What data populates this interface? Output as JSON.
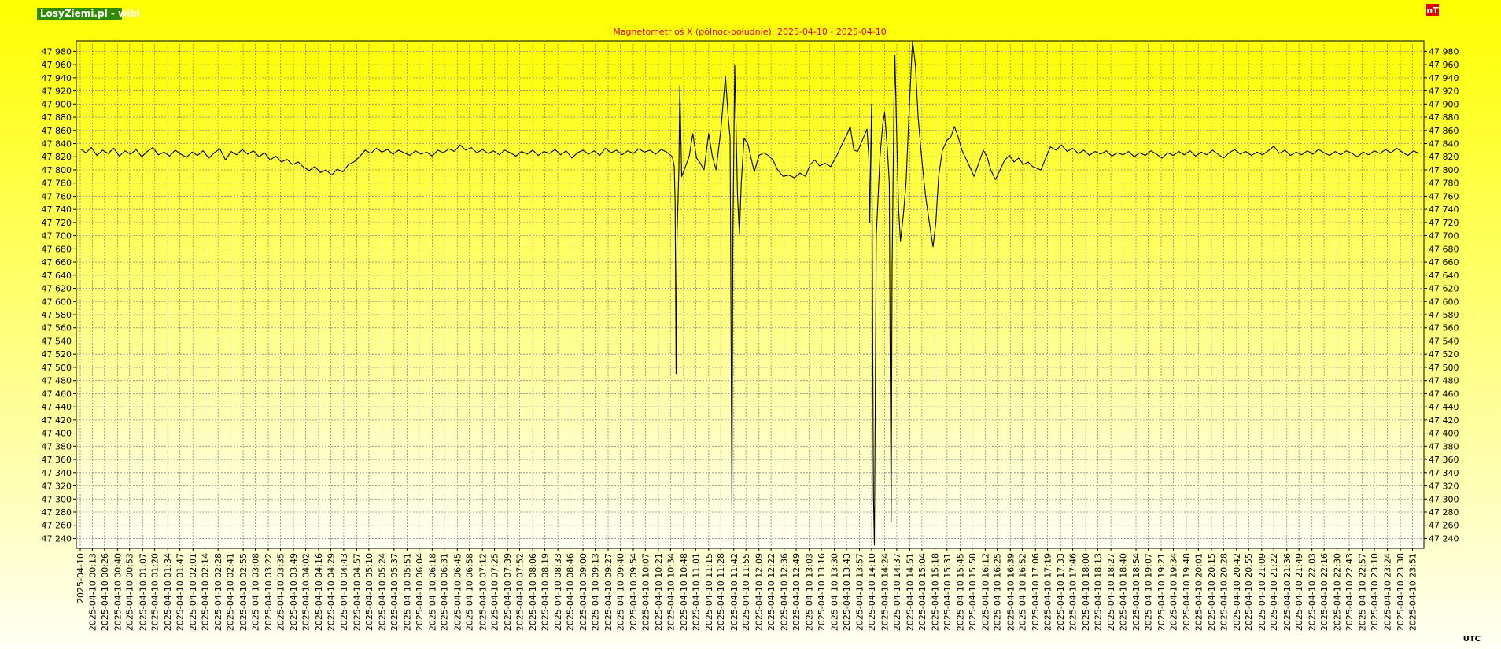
{
  "logo": "LosyZiemi.pl - wibi",
  "unit": "nT",
  "time_zone": "UTC",
  "chart_data": {
    "type": "line",
    "title": "Magnetometr oś X (północ-południe): 2025-04-10 - 2025-04-10",
    "color": "#000000",
    "grid": true,
    "xlim": [
      "2025-04-10 00:00",
      "2025-04-10 23:59"
    ],
    "ylim": [
      47225,
      47996
    ],
    "yticks": [
      {
        "value": 47240,
        "label": "47 240"
      },
      {
        "value": 47260,
        "label": "47 260"
      },
      {
        "value": 47280,
        "label": "47 280"
      },
      {
        "value": 47300,
        "label": "47 300"
      },
      {
        "value": 47320,
        "label": "47 320"
      },
      {
        "value": 47340,
        "label": "47 340"
      },
      {
        "value": 47360,
        "label": "47 360"
      },
      {
        "value": 47380,
        "label": "47 380"
      },
      {
        "value": 47400,
        "label": "47 400"
      },
      {
        "value": 47420,
        "label": "47 420"
      },
      {
        "value": 47440,
        "label": "47 440"
      },
      {
        "value": 47460,
        "label": "47 460"
      },
      {
        "value": 47480,
        "label": "47 480"
      },
      {
        "value": 47500,
        "label": "47 500"
      },
      {
        "value": 47520,
        "label": "47 520"
      },
      {
        "value": 47540,
        "label": "47 540"
      },
      {
        "value": 47560,
        "label": "47 560"
      },
      {
        "value": 47580,
        "label": "47 580"
      },
      {
        "value": 47600,
        "label": "47 600"
      },
      {
        "value": 47620,
        "label": "47 620"
      },
      {
        "value": 47640,
        "label": "47 640"
      },
      {
        "value": 47660,
        "label": "47 660"
      },
      {
        "value": 47680,
        "label": "47 680"
      },
      {
        "value": 47700,
        "label": "47 700"
      },
      {
        "value": 47720,
        "label": "47 720"
      },
      {
        "value": 47740,
        "label": "47 740"
      },
      {
        "value": 47760,
        "label": "47 760"
      },
      {
        "value": 47780,
        "label": "47 780"
      },
      {
        "value": 47800,
        "label": "47 800"
      },
      {
        "value": 47820,
        "label": "47 820"
      },
      {
        "value": 47840,
        "label": "47 840"
      },
      {
        "value": 47860,
        "label": "47 860"
      },
      {
        "value": 47880,
        "label": "47 880"
      },
      {
        "value": 47900,
        "label": "47 900"
      },
      {
        "value": 47920,
        "label": "47 920"
      },
      {
        "value": 47940,
        "label": "47 940"
      },
      {
        "value": 47960,
        "label": "47 960"
      },
      {
        "value": 47980,
        "label": "47 980"
      }
    ],
    "xticks": [
      "2025-04-10",
      "2025-04-10 00:13",
      "2025-04-10 00:26",
      "2025-04-10 00:40",
      "2025-04-10 00:53",
      "2025-04-10 01:07",
      "2025-04-10 01:20",
      "2025-04-10 01:34",
      "2025-04-10 01:47",
      "2025-04-10 02:01",
      "2025-04-10 02:14",
      "2025-04-10 02:28",
      "2025-04-10 02:41",
      "2025-04-10 02:55",
      "2025-04-10 03:08",
      "2025-04-10 03:22",
      "2025-04-10 03:35",
      "2025-04-10 03:49",
      "2025-04-10 04:02",
      "2025-04-10 04:16",
      "2025-04-10 04:29",
      "2025-04-10 04:43",
      "2025-04-10 04:57",
      "2025-04-10 05:10",
      "2025-04-10 05:24",
      "2025-04-10 05:37",
      "2025-04-10 05:51",
      "2025-04-10 06:04",
      "2025-04-10 06:18",
      "2025-04-10 06:31",
      "2025-04-10 06:45",
      "2025-04-10 06:58",
      "2025-04-10 07:12",
      "2025-04-10 07:25",
      "2025-04-10 07:39",
      "2025-04-10 07:52",
      "2025-04-10 08:06",
      "2025-04-10 08:19",
      "2025-04-10 08:33",
      "2025-04-10 08:46",
      "2025-04-10 09:00",
      "2025-04-10 09:13",
      "2025-04-10 09:27",
      "2025-04-10 09:40",
      "2025-04-10 09:54",
      "2025-04-10 10:07",
      "2025-04-10 10:21",
      "2025-04-10 10:34",
      "2025-04-10 10:48",
      "2025-04-10 11:01",
      "2025-04-10 11:15",
      "2025-04-10 11:28",
      "2025-04-10 11:42",
      "2025-04-10 11:55",
      "2025-04-10 12:09",
      "2025-04-10 12:22",
      "2025-04-10 12:36",
      "2025-04-10 12:49",
      "2025-04-10 13:03",
      "2025-04-10 13:16",
      "2025-04-10 13:30",
      "2025-04-10 13:43",
      "2025-04-10 13:57",
      "2025-04-10 14:10",
      "2025-04-10 14:24",
      "2025-04-10 14:37",
      "2025-04-10 14:51",
      "2025-04-10 15:04",
      "2025-04-10 15:18",
      "2025-04-10 15:31",
      "2025-04-10 15:45",
      "2025-04-10 15:58",
      "2025-04-10 16:12",
      "2025-04-10 16:25",
      "2025-04-10 16:39",
      "2025-04-10 16:52",
      "2025-04-10 17:06",
      "2025-04-10 17:19",
      "2025-04-10 17:33",
      "2025-04-10 17:46",
      "2025-04-10 18:00",
      "2025-04-10 18:13",
      "2025-04-10 18:27",
      "2025-04-10 18:40",
      "2025-04-10 18:54",
      "2025-04-10 19:07",
      "2025-04-10 19:21",
      "2025-04-10 19:34",
      "2025-04-10 19:48",
      "2025-04-10 20:01",
      "2025-04-10 20:15",
      "2025-04-10 20:28",
      "2025-04-10 20:42",
      "2025-04-10 20:55",
      "2025-04-10 21:09",
      "2025-04-10 21:22",
      "2025-04-10 21:36",
      "2025-04-10 21:49",
      "2025-04-10 22:03",
      "2025-04-10 22:16",
      "2025-04-10 22:30",
      "2025-04-10 22:43",
      "2025-04-10 22:57",
      "2025-04-10 23:10",
      "2025-04-10 23:24",
      "2025-04-10 23:38",
      "2025-04-10 23:51"
    ],
    "x": [
      "2025-04-10 00:00",
      "2025-04-10 00:06",
      "2025-04-10 00:12",
      "2025-04-10 00:18",
      "2025-04-10 00:24",
      "2025-04-10 00:30",
      "2025-04-10 00:36",
      "2025-04-10 00:42",
      "2025-04-10 00:48",
      "2025-04-10 00:54",
      "2025-04-10 01:00",
      "2025-04-10 01:06",
      "2025-04-10 01:12",
      "2025-04-10 01:18",
      "2025-04-10 01:24",
      "2025-04-10 01:30",
      "2025-04-10 01:36",
      "2025-04-10 01:42",
      "2025-04-10 01:48",
      "2025-04-10 01:54",
      "2025-04-10 02:00",
      "2025-04-10 02:06",
      "2025-04-10 02:12",
      "2025-04-10 02:18",
      "2025-04-10 02:24",
      "2025-04-10 02:30",
      "2025-04-10 02:36",
      "2025-04-10 02:42",
      "2025-04-10 02:48",
      "2025-04-10 02:54",
      "2025-04-10 03:00",
      "2025-04-10 03:06",
      "2025-04-10 03:12",
      "2025-04-10 03:18",
      "2025-04-10 03:24",
      "2025-04-10 03:30",
      "2025-04-10 03:36",
      "2025-04-10 03:42",
      "2025-04-10 03:48",
      "2025-04-10 03:54",
      "2025-04-10 04:00",
      "2025-04-10 04:06",
      "2025-04-10 04:12",
      "2025-04-10 04:18",
      "2025-04-10 04:24",
      "2025-04-10 04:30",
      "2025-04-10 04:36",
      "2025-04-10 04:42",
      "2025-04-10 04:48",
      "2025-04-10 04:54",
      "2025-04-10 05:00",
      "2025-04-10 05:06",
      "2025-04-10 05:12",
      "2025-04-10 05:18",
      "2025-04-10 05:24",
      "2025-04-10 05:30",
      "2025-04-10 05:36",
      "2025-04-10 05:42",
      "2025-04-10 05:48",
      "2025-04-10 05:54",
      "2025-04-10 06:00",
      "2025-04-10 06:06",
      "2025-04-10 06:12",
      "2025-04-10 06:18",
      "2025-04-10 06:24",
      "2025-04-10 06:30",
      "2025-04-10 06:36",
      "2025-04-10 06:42",
      "2025-04-10 06:48",
      "2025-04-10 06:54",
      "2025-04-10 07:00",
      "2025-04-10 07:06",
      "2025-04-10 07:12",
      "2025-04-10 07:18",
      "2025-04-10 07:24",
      "2025-04-10 07:30",
      "2025-04-10 07:36",
      "2025-04-10 07:42",
      "2025-04-10 07:48",
      "2025-04-10 07:54",
      "2025-04-10 08:00",
      "2025-04-10 08:06",
      "2025-04-10 08:12",
      "2025-04-10 08:18",
      "2025-04-10 08:24",
      "2025-04-10 08:30",
      "2025-04-10 08:36",
      "2025-04-10 08:42",
      "2025-04-10 08:48",
      "2025-04-10 08:54",
      "2025-04-10 09:00",
      "2025-04-10 09:06",
      "2025-04-10 09:12",
      "2025-04-10 09:18",
      "2025-04-10 09:24",
      "2025-04-10 09:30",
      "2025-04-10 09:36",
      "2025-04-10 09:42",
      "2025-04-10 09:48",
      "2025-04-10 09:54",
      "2025-04-10 10:00",
      "2025-04-10 10:06",
      "2025-04-10 10:12",
      "2025-04-10 10:18",
      "2025-04-10 10:24",
      "2025-04-10 10:30",
      "2025-04-10 10:36",
      "2025-04-10 10:38",
      "2025-04-10 10:39",
      "2025-04-10 10:40",
      "2025-04-10 10:41",
      "2025-04-10 10:43",
      "2025-04-10 10:44",
      "2025-04-10 10:46",
      "2025-04-10 10:50",
      "2025-04-10 10:54",
      "2025-04-10 10:58",
      "2025-04-10 11:02",
      "2025-04-10 11:06",
      "2025-04-10 11:10",
      "2025-04-10 11:15",
      "2025-04-10 11:19",
      "2025-04-10 11:23",
      "2025-04-10 11:28",
      "2025-04-10 11:33",
      "2025-04-10 11:36",
      "2025-04-10 11:38",
      "2025-04-10 11:40",
      "2025-04-10 11:41",
      "2025-04-10 11:43",
      "2025-04-10 11:46",
      "2025-04-10 11:48",
      "2025-04-10 11:50",
      "2025-04-10 11:53",
      "2025-04-10 11:57",
      "2025-04-10 12:01",
      "2025-04-10 12:04",
      "2025-04-10 12:09",
      "2025-04-10 12:14",
      "2025-04-10 12:19",
      "2025-04-10 12:24",
      "2025-04-10 12:29",
      "2025-04-10 12:35",
      "2025-04-10 12:41",
      "2025-04-10 12:47",
      "2025-04-10 12:53",
      "2025-04-10 12:59",
      "2025-04-10 13:04",
      "2025-04-10 13:09",
      "2025-04-10 13:14",
      "2025-04-10 13:20",
      "2025-04-10 13:26",
      "2025-04-10 13:32",
      "2025-04-10 13:38",
      "2025-04-10 13:44",
      "2025-04-10 13:47",
      "2025-04-10 13:51",
      "2025-04-10 13:55",
      "2025-04-10 14:00",
      "2025-04-10 14:05",
      "2025-04-10 14:07",
      "2025-04-10 14:08",
      "2025-04-10 14:09",
      "2025-04-10 14:10",
      "2025-04-10 14:12",
      "2025-04-10 14:13",
      "2025-04-10 14:15",
      "2025-04-10 14:19",
      "2025-04-10 14:22",
      "2025-04-10 14:24",
      "2025-04-10 14:27",
      "2025-04-10 14:29",
      "2025-04-10 14:30",
      "2025-04-10 14:31",
      "2025-04-10 14:32",
      "2025-04-10 14:34",
      "2025-04-10 14:35",
      "2025-04-10 14:37",
      "2025-04-10 14:39",
      "2025-04-10 14:41",
      "2025-04-10 14:44",
      "2025-04-10 14:47",
      "2025-04-10 14:50",
      "2025-04-10 14:53",
      "2025-04-10 14:54",
      "2025-04-10 14:57",
      "2025-04-10 15:00",
      "2025-04-10 15:03",
      "2025-04-10 15:05",
      "2025-04-10 15:08",
      "2025-04-10 15:12",
      "2025-04-10 15:16",
      "2025-04-10 15:19",
      "2025-04-10 15:22",
      "2025-04-10 15:26",
      "2025-04-10 15:31",
      "2025-04-10 15:35",
      "2025-04-10 15:39",
      "2025-04-10 15:43",
      "2025-04-10 15:47",
      "2025-04-10 15:52",
      "2025-04-10 15:57",
      "2025-04-10 16:00",
      "2025-04-10 16:05",
      "2025-04-10 16:10",
      "2025-04-10 16:14",
      "2025-04-10 16:18",
      "2025-04-10 16:23",
      "2025-04-10 16:28",
      "2025-04-10 16:33",
      "2025-04-10 16:38",
      "2025-04-10 16:43",
      "2025-04-10 16:48",
      "2025-04-10 16:53",
      "2025-04-10 16:58",
      "2025-04-10 17:03",
      "2025-04-10 17:08",
      "2025-04-10 17:12",
      "2025-04-10 17:17",
      "2025-04-10 17:22",
      "2025-04-10 17:28",
      "2025-04-10 17:34",
      "2025-04-10 17:40",
      "2025-04-10 17:46",
      "2025-04-10 17:52",
      "2025-04-10 17:58",
      "2025-04-10 18:04",
      "2025-04-10 18:10",
      "2025-04-10 18:16",
      "2025-04-10 18:22",
      "2025-04-10 18:28",
      "2025-04-10 18:34",
      "2025-04-10 18:40",
      "2025-04-10 18:46",
      "2025-04-10 18:52",
      "2025-04-10 18:58",
      "2025-04-10 19:04",
      "2025-04-10 19:10",
      "2025-04-10 19:16",
      "2025-04-10 19:22",
      "2025-04-10 19:28",
      "2025-04-10 19:34",
      "2025-04-10 19:40",
      "2025-04-10 19:46",
      "2025-04-10 19:52",
      "2025-04-10 19:58",
      "2025-04-10 20:04",
      "2025-04-10 20:10",
      "2025-04-10 20:16",
      "2025-04-10 20:22",
      "2025-04-10 20:28",
      "2025-04-10 20:34",
      "2025-04-10 20:40",
      "2025-04-10 20:46",
      "2025-04-10 20:52",
      "2025-04-10 20:58",
      "2025-04-10 21:04",
      "2025-04-10 21:10",
      "2025-04-10 21:16",
      "2025-04-10 21:22",
      "2025-04-10 21:28",
      "2025-04-10 21:34",
      "2025-04-10 21:40",
      "2025-04-10 21:46",
      "2025-04-10 21:52",
      "2025-04-10 21:58",
      "2025-04-10 22:04",
      "2025-04-10 22:10",
      "2025-04-10 22:16",
      "2025-04-10 22:22",
      "2025-04-10 22:28",
      "2025-04-10 22:34",
      "2025-04-10 22:40",
      "2025-04-10 22:46",
      "2025-04-10 22:52",
      "2025-04-10 22:58",
      "2025-04-10 23:04",
      "2025-04-10 23:10",
      "2025-04-10 23:16",
      "2025-04-10 23:22",
      "2025-04-10 23:28",
      "2025-04-10 23:34",
      "2025-04-10 23:40",
      "2025-04-10 23:46",
      "2025-04-10 23:52",
      "2025-04-10 23:58"
    ],
    "values": [
      47832,
      47826,
      47834,
      47822,
      47830,
      47825,
      47833,
      47821,
      47829,
      47824,
      47831,
      47820,
      47828,
      47834,
      47823,
      47827,
      47821,
      47830,
      47824,
      47819,
      47827,
      47822,
      47829,
      47818,
      47826,
      47832,
      47815,
      47828,
      47823,
      47831,
      47824,
      47829,
      47820,
      47826,
      47815,
      47821,
      47812,
      47816,
      47808,
      47812,
      47804,
      47799,
      47805,
      47796,
      47800,
      47792,
      47801,
      47797,
      47808,
      47812,
      47820,
      47830,
      47825,
      47833,
      47827,
      47831,
      47824,
      47830,
      47826,
      47822,
      47829,
      47824,
      47827,
      47821,
      47830,
      47826,
      47832,
      47828,
      47838,
      47830,
      47834,
      47826,
      47831,
      47825,
      47829,
      47823,
      47830,
      47826,
      47821,
      47828,
      47824,
      47830,
      47822,
      47828,
      47825,
      47831,
      47823,
      47829,
      47818,
      47826,
      47830,
      47824,
      47829,
      47822,
      47833,
      47826,
      47830,
      47823,
      47829,
      47825,
      47832,
      47827,
      47830,
      47824,
      47831,
      47827,
      47820,
      47805,
      47750,
      47490,
      47700,
      47800,
      47928,
      47790,
      47805,
      47820,
      47855,
      47818,
      47810,
      47800,
      47855,
      47820,
      47800,
      47860,
      47942,
      47880,
      47850,
      47284,
      47700,
      47960,
      47760,
      47702,
      47780,
      47848,
      47840,
      47815,
      47797,
      47822,
      47826,
      47822,
      47815,
      47800,
      47790,
      47792,
      47788,
      47795,
      47790,
      47808,
      47815,
      47806,
      47810,
      47805,
      47820,
      47838,
      47855,
      47866,
      47830,
      47828,
      47845,
      47862,
      47820,
      47720,
      47820,
      47900,
      47302,
      47230,
      47700,
      47820,
      47870,
      47887,
      47830,
      47780,
      47500,
      47266,
      47650,
      47900,
      47974,
      47850,
      47740,
      47692,
      47730,
      47780,
      47880,
      47970,
      47996,
      47960,
      47880,
      47830,
      47800,
      47760,
      47720,
      47683,
      47720,
      47790,
      47830,
      47845,
      47850,
      47866,
      47850,
      47830,
      47815,
      47800,
      47790,
      47810,
      47830,
      47820,
      47800,
      47785,
      47800,
      47815,
      47822,
      47812,
      47818,
      47808,
      47812,
      47805,
      47802,
      47800,
      47818,
      47835,
      47830,
      47838,
      47828,
      47833,
      47825,
      47830,
      47822,
      47828,
      47824,
      47829,
      47821,
      47826,
      47823,
      47828,
      47820,
      47826,
      47822,
      47829,
      47824,
      47818,
      47826,
      47822,
      47828,
      47823,
      47829,
      47821,
      47827,
      47823,
      47830,
      47824,
      47818,
      47826,
      47831,
      47824,
      47828,
      47822,
      47827,
      47823,
      47829,
      47836,
      47825,
      47830,
      47822,
      47827,
      47823,
      47829,
      47824,
      47831,
      47826,
      47822,
      47828,
      47823,
      47829,
      47825,
      47820,
      47827,
      47823,
      47829,
      47825,
      47831,
      47826,
      47833,
      47827,
      47822,
      47829,
      47825
    ]
  }
}
